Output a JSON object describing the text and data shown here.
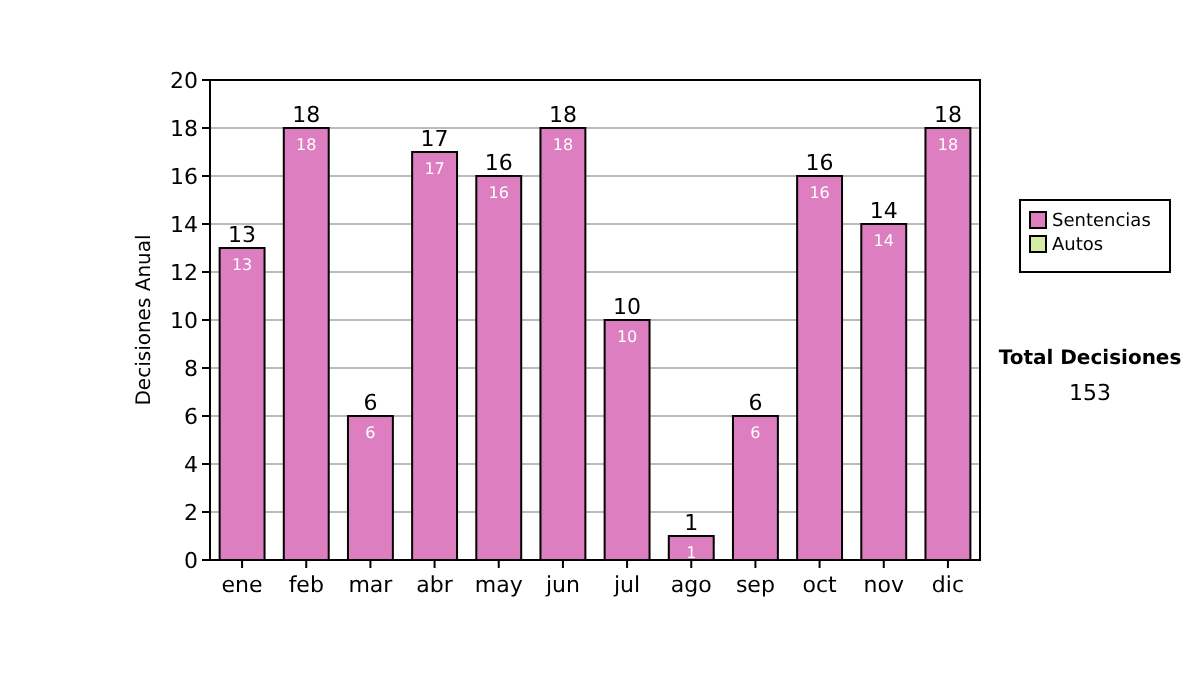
{
  "chart_data": {
    "type": "bar",
    "stacked": true,
    "ylabel": "Decisiones Anual",
    "categories": [
      "ene",
      "feb",
      "mar",
      "abr",
      "may",
      "jun",
      "jul",
      "ago",
      "sep",
      "oct",
      "nov",
      "dic"
    ],
    "series": [
      {
        "name": "Sentencias",
        "color": "#dd7ec0",
        "values": [
          13,
          18,
          6,
          17,
          16,
          18,
          10,
          1,
          6,
          16,
          14,
          18
        ],
        "value_labels": [
          "13",
          "18",
          "6",
          "17",
          "16",
          "18",
          "10",
          "1",
          "6",
          "16",
          "14",
          "18"
        ]
      },
      {
        "name": "Autos",
        "color": "#d4eca4",
        "values": [
          0,
          0,
          0,
          0,
          0,
          0,
          0,
          0,
          0,
          0,
          0,
          0
        ]
      }
    ],
    "totals": [
      "13",
      "18",
      "6",
      "17",
      "16",
      "18",
      "10",
      "1",
      "6",
      "16",
      "14",
      "18"
    ],
    "ylim": [
      0,
      20
    ],
    "yticks": [
      0,
      2,
      4,
      6,
      8,
      10,
      12,
      14,
      16,
      18,
      20
    ],
    "grid": "y",
    "legend": "right",
    "annotations": [
      "Total Decisiones",
      "153"
    ]
  }
}
